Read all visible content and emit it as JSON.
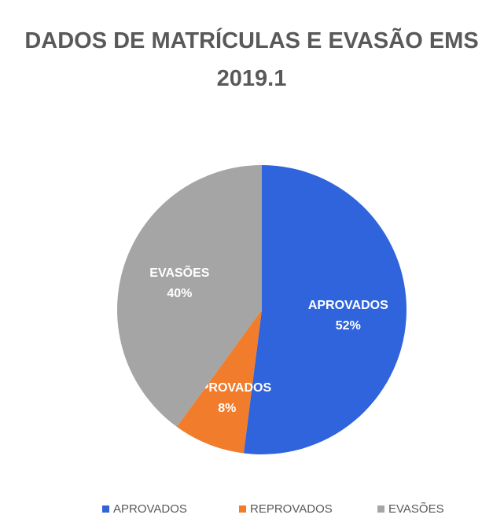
{
  "chart_data": {
    "type": "pie",
    "title": "DADOS DE MATRÍCULAS  E EVASÃO EMS 2019.1",
    "categories": [
      "APROVADOS",
      "REPROVADOS",
      "EVASÕES"
    ],
    "values": [
      52,
      8,
      40
    ],
    "value_labels": [
      "52%",
      "8%",
      "40%"
    ],
    "colors": [
      "#2f64dc",
      "#f07c2c",
      "#a5a5a5"
    ],
    "legend": "bottom"
  }
}
